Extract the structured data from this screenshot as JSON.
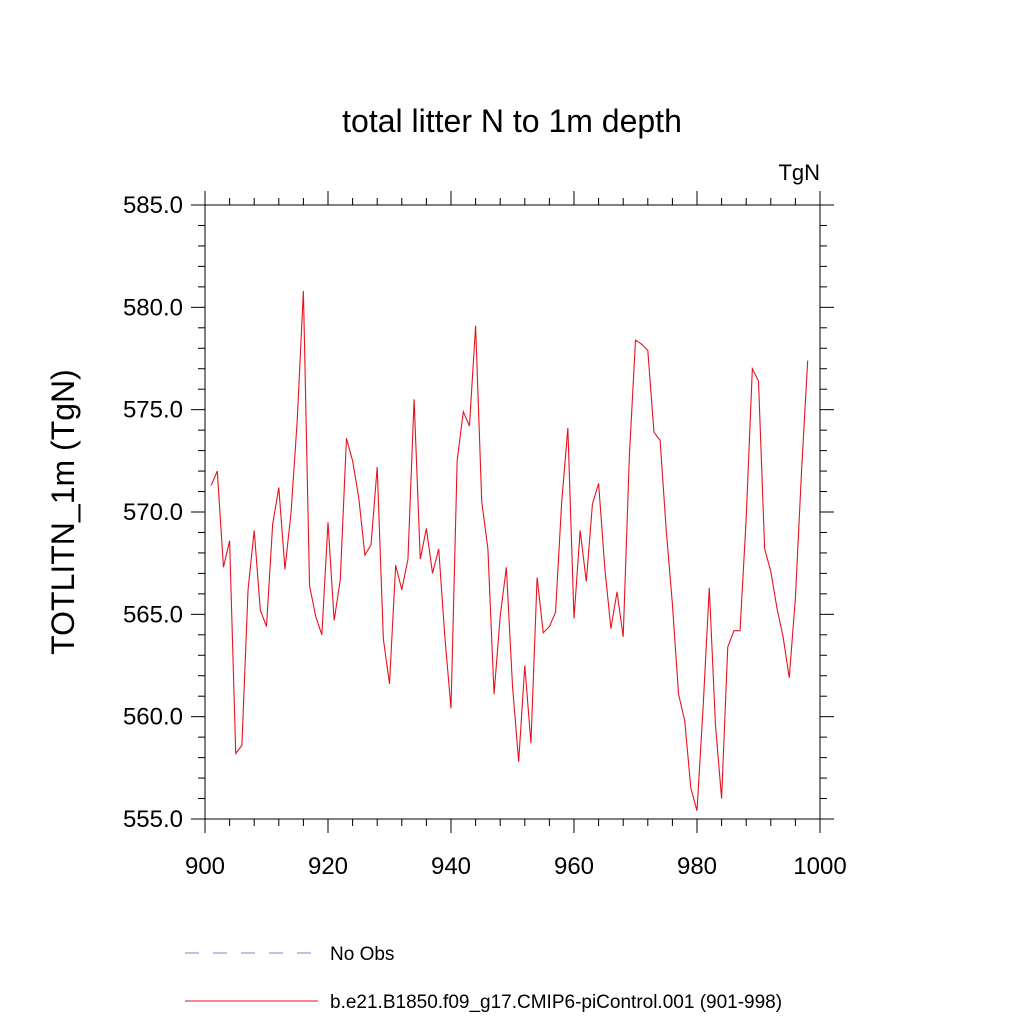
{
  "chart_data": {
    "type": "line",
    "title": "total litter N to 1m depth",
    "units": "TgN",
    "xlabel": "",
    "ylabel": "TOTLITN_1m  (TgN)",
    "xlim": [
      900,
      1000
    ],
    "ylim": [
      555.0,
      585.0
    ],
    "xticks": [
      900,
      920,
      940,
      960,
      980,
      1000
    ],
    "xtick_labels": [
      "900",
      "920",
      "940",
      "960",
      "980",
      "1000"
    ],
    "yticks": [
      555.0,
      560.0,
      565.0,
      570.0,
      575.0,
      580.0,
      585.0
    ],
    "ytick_labels": [
      "555.0",
      "560.0",
      "565.0",
      "570.0",
      "575.0",
      "580.0",
      "585.0"
    ],
    "series": [
      {
        "name": "b.e21.B1850.f09_g17.CMIP6-piControl.001 (901-998)",
        "color": "#e8121d",
        "style": "solid",
        "x": [
          901,
          902,
          903,
          904,
          905,
          906,
          907,
          908,
          909,
          910,
          911,
          912,
          913,
          914,
          915,
          916,
          917,
          918,
          919,
          920,
          921,
          922,
          923,
          924,
          925,
          926,
          927,
          928,
          929,
          930,
          931,
          932,
          933,
          934,
          935,
          936,
          937,
          938,
          939,
          940,
          941,
          942,
          943,
          944,
          945,
          946,
          947,
          948,
          949,
          950,
          951,
          952,
          953,
          954,
          955,
          956,
          957,
          958,
          959,
          960,
          961,
          962,
          963,
          964,
          965,
          966,
          967,
          968,
          969,
          970,
          971,
          972,
          973,
          974,
          975,
          976,
          977,
          978,
          979,
          980,
          981,
          982,
          983,
          984,
          985,
          986,
          987,
          988,
          989,
          990,
          991,
          992,
          993,
          994,
          995,
          996,
          997,
          998
        ],
        "values": [
          571.3,
          572.0,
          567.3,
          568.6,
          558.2,
          558.6,
          566.2,
          569.1,
          565.2,
          564.4,
          569.4,
          571.2,
          567.2,
          570.0,
          574.5,
          580.8,
          566.4,
          564.9,
          564.0,
          569.5,
          564.7,
          566.7,
          573.6,
          572.5,
          570.7,
          567.9,
          568.4,
          572.2,
          563.8,
          561.6,
          567.4,
          566.2,
          567.7,
          575.5,
          567.7,
          569.2,
          567.0,
          568.2,
          563.9,
          560.4,
          572.5,
          574.9,
          574.2,
          579.1,
          570.5,
          568.2,
          561.1,
          564.9,
          567.3,
          561.5,
          557.8,
          562.5,
          558.7,
          566.8,
          564.1,
          564.4,
          565.1,
          570.5,
          574.1,
          564.8,
          569.1,
          566.6,
          570.4,
          571.4,
          567.3,
          564.3,
          566.1,
          563.9,
          572.7,
          578.4,
          578.2,
          577.9,
          573.9,
          573.5,
          569.1,
          565.5,
          561.1,
          559.8,
          556.5,
          555.4,
          560.5,
          566.3,
          559.6,
          556.0,
          563.4,
          564.2,
          564.2,
          569.7,
          577.0,
          576.4,
          568.2,
          567.1,
          565.3,
          563.9,
          561.9,
          565.8,
          572.0,
          577.4
        ]
      },
      {
        "name": "No Obs",
        "color": "#8080c8",
        "style": "dashed",
        "x": [],
        "values": []
      }
    ],
    "legend": [
      "No Obs",
      "b.e21.B1850.f09_g17.CMIP6-piControl.001 (901-998)"
    ],
    "legend_position": "bottom"
  }
}
